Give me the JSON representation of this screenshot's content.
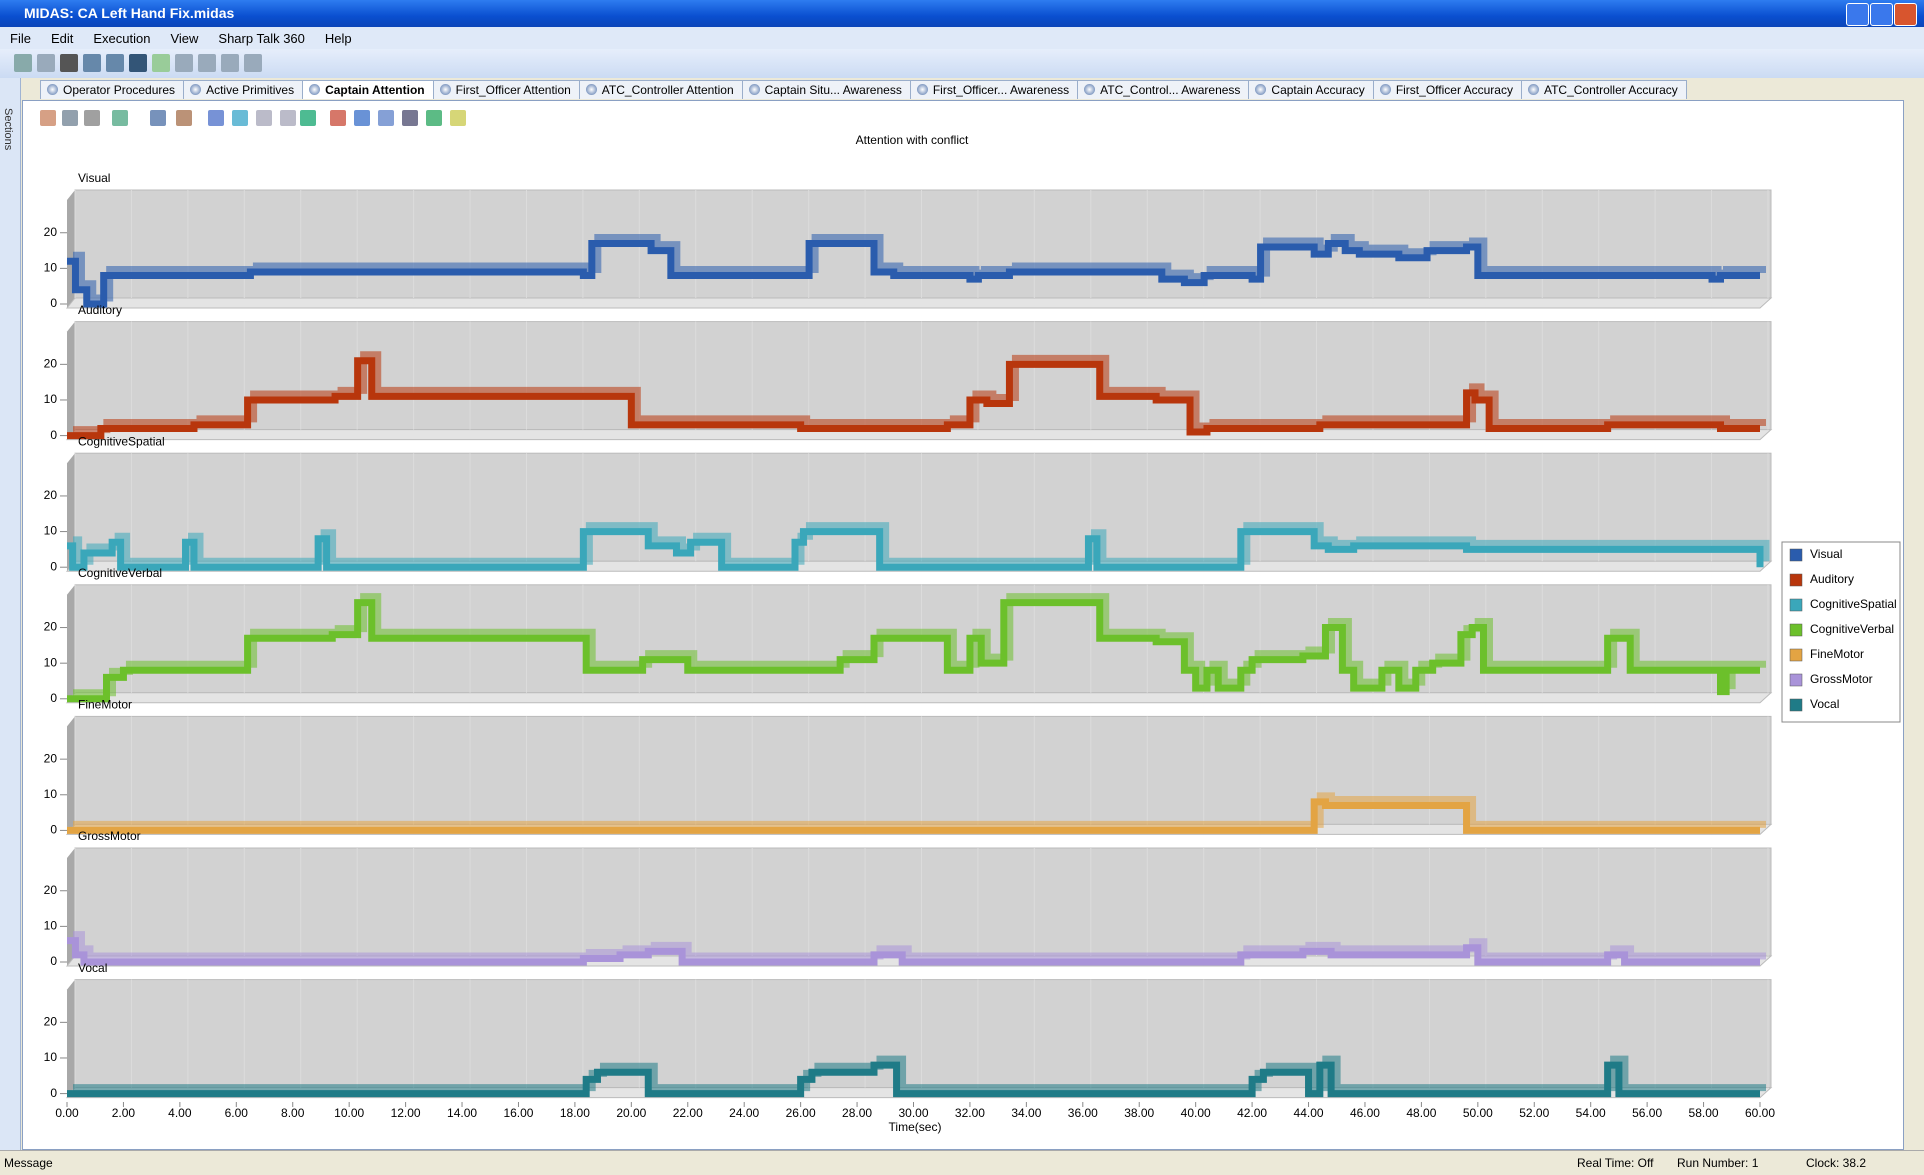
{
  "window": {
    "title": "MIDAS: CA Left Hand  Fix.midas"
  },
  "menu": [
    "File",
    "Edit",
    "Execution",
    "View",
    "Sharp Talk 360",
    "Help"
  ],
  "side_tab": "Sections",
  "tabs": [
    "Operator Procedures",
    "Active Primitives",
    "Captain Attention",
    "First_Officer Attention",
    "ATC_Controller Attention",
    "Captain Situ... Awareness",
    "First_Officer... Awareness",
    "ATC_Control... Awareness",
    "Captain Accuracy",
    "First_Officer Accuracy",
    "ATC_Controller Accuracy"
  ],
  "status": {
    "message": "Message",
    "real_time": "Real Time: Off",
    "run_number": "Run Number: 1",
    "clock": "Clock: 38.2"
  },
  "chart_data": {
    "type": "step",
    "title": "Attention with conflict",
    "x_label": "Time(sec)",
    "xlim": [
      0,
      60
    ],
    "xticks": [
      {
        "value": 0,
        "label": "0.00"
      },
      {
        "value": 2,
        "label": "2.00"
      },
      {
        "value": 4,
        "label": "4.00"
      },
      {
        "value": 6,
        "label": "6.00"
      },
      {
        "value": 8,
        "label": "8.00"
      },
      {
        "value": 10,
        "label": "10.00"
      },
      {
        "value": 12,
        "label": "12.00"
      },
      {
        "value": 14,
        "label": "14.00"
      },
      {
        "value": 16,
        "label": "16.00"
      },
      {
        "value": 18,
        "label": "18.00"
      },
      {
        "value": 20,
        "label": "20.00"
      },
      {
        "value": 22,
        "label": "22.00"
      },
      {
        "value": 24,
        "label": "24.00"
      },
      {
        "value": 26,
        "label": "26.00"
      },
      {
        "value": 28,
        "label": "28.00"
      },
      {
        "value": 30,
        "label": "30.00"
      },
      {
        "value": 32,
        "label": "32.00"
      },
      {
        "value": 34,
        "label": "34.00"
      },
      {
        "value": 36,
        "label": "36.00"
      },
      {
        "value": 38,
        "label": "38.00"
      },
      {
        "value": 40,
        "label": "40.00"
      },
      {
        "value": 42,
        "label": "42.00"
      },
      {
        "value": 44,
        "label": "44.00"
      },
      {
        "value": 46,
        "label": "46.00"
      },
      {
        "value": 48,
        "label": "48.00"
      },
      {
        "value": 50,
        "label": "50.00"
      },
      {
        "value": 52,
        "label": "52.00"
      },
      {
        "value": 54,
        "label": "54.00"
      },
      {
        "value": 56,
        "label": "56.00"
      },
      {
        "value": 58,
        "label": "58.00"
      },
      {
        "value": 60,
        "label": "60.00"
      }
    ],
    "ylim": [
      0,
      32
    ],
    "yticks": [
      0,
      10,
      20
    ],
    "grid": true,
    "legend": "right",
    "series": [
      {
        "name": "Visual",
        "color": "#2a5cad",
        "x": [
          0,
          0.3,
          0.7,
          1.3,
          6.5,
          10,
          11,
          18.3,
          18.6,
          20.7,
          21.4,
          26,
          26.3,
          28.6,
          29.3,
          32,
          32.3,
          33.4,
          36,
          38.8,
          39.6,
          40.3,
          42,
          42.3,
          44.2,
          44.7,
          45.3,
          45.8,
          47.2,
          48.2,
          49.6,
          50,
          54.6,
          58.3,
          58.6,
          60
        ],
        "values": [
          12,
          4,
          0,
          8,
          9,
          9,
          9,
          8,
          17,
          15,
          8,
          8,
          17,
          9,
          8,
          7,
          8,
          9,
          9,
          7,
          6,
          8,
          7,
          16,
          14,
          17,
          15,
          14,
          13,
          15,
          16,
          8,
          8,
          7,
          8,
          8
        ]
      },
      {
        "name": "Auditory",
        "color": "#b8360c",
        "x": [
          0,
          1.2,
          4.5,
          6.4,
          9.5,
          10.3,
          10.8,
          16.8,
          20,
          21.4,
          26,
          31.2,
          32,
          32.6,
          33.4,
          36.6,
          38.6,
          39.8,
          40.4,
          41.6,
          44.4,
          45.4,
          49.6,
          49.9,
          50.4,
          54.6,
          58.6,
          60
        ],
        "values": [
          0,
          2,
          3,
          10,
          11,
          21,
          11,
          11,
          3,
          3,
          2,
          3,
          10,
          9,
          20,
          11,
          10,
          1,
          2,
          2,
          3,
          3,
          12,
          10,
          2,
          3,
          2,
          2
        ]
      },
      {
        "name": "CognitiveSpatial",
        "color": "#3aa7ba",
        "x": [
          0,
          0.2,
          0.6,
          1.6,
          1.9,
          4.2,
          4.5,
          8.9,
          9.2,
          18.3,
          18.6,
          20.6,
          21.6,
          22.1,
          23.2,
          25.8,
          26.1,
          28.8,
          36.2,
          36.5,
          41.6,
          41.9,
          44.2,
          44.7,
          45.6,
          49.6,
          60
        ],
        "values": [
          6,
          0,
          4,
          7,
          0,
          7,
          0,
          8,
          0,
          10,
          10,
          6,
          4,
          7,
          0,
          7,
          10,
          0,
          8,
          0,
          10,
          10,
          6,
          5,
          6,
          5,
          0
        ]
      },
      {
        "name": "CognitiveVerbal",
        "color": "#6cc02b",
        "x": [
          0,
          1.4,
          2,
          6.4,
          9.4,
          10.3,
          10.8,
          16.8,
          18.4,
          20.4,
          22,
          26,
          27.4,
          28.6,
          31.2,
          32,
          32.4,
          33.2,
          36.6,
          38.6,
          39.6,
          40,
          40.4,
          40.8,
          41.6,
          42,
          43.8,
          44.6,
          45.2,
          45.6,
          46.6,
          47.2,
          47.8,
          48.4,
          49.4,
          49.8,
          50.2,
          54.6,
          55.4,
          58.6,
          58.8,
          60
        ],
        "values": [
          0,
          6,
          8,
          17,
          18,
          27,
          17,
          17,
          8,
          11,
          8,
          8,
          11,
          17,
          8,
          17,
          10,
          27,
          17,
          16,
          8,
          3,
          8,
          3,
          8,
          11,
          12,
          20,
          8,
          3,
          8,
          3,
          8,
          10,
          18,
          20,
          8,
          17,
          8,
          2,
          8,
          8
        ]
      },
      {
        "name": "FineMotor",
        "color": "#e3a443",
        "x": [
          0,
          44.2,
          44.6,
          49.6,
          60
        ],
        "values": [
          0,
          8,
          7,
          0,
          0
        ]
      },
      {
        "name": "GrossMotor",
        "color": "#a993d9",
        "x": [
          0,
          0.3,
          0.6,
          18.3,
          19.6,
          20.6,
          21.8,
          28.6,
          29.6,
          41.6,
          43.8,
          44.8,
          49.6,
          50,
          54.6,
          55.2,
          60
        ],
        "values": [
          6,
          2,
          0,
          1,
          2,
          3,
          0,
          2,
          0,
          2,
          3,
          2,
          4,
          0,
          2,
          0,
          0
        ]
      },
      {
        "name": "Vocal",
        "color": "#1f7b87",
        "x": [
          0,
          18.4,
          18.8,
          20.6,
          26,
          26.4,
          28.6,
          29.4,
          42,
          42.4,
          44,
          44.4,
          44.8,
          54.6,
          55,
          60
        ],
        "values": [
          0,
          4,
          6,
          0,
          4,
          6,
          8,
          0,
          4,
          6,
          0,
          8,
          0,
          8,
          0,
          0
        ]
      }
    ]
  }
}
